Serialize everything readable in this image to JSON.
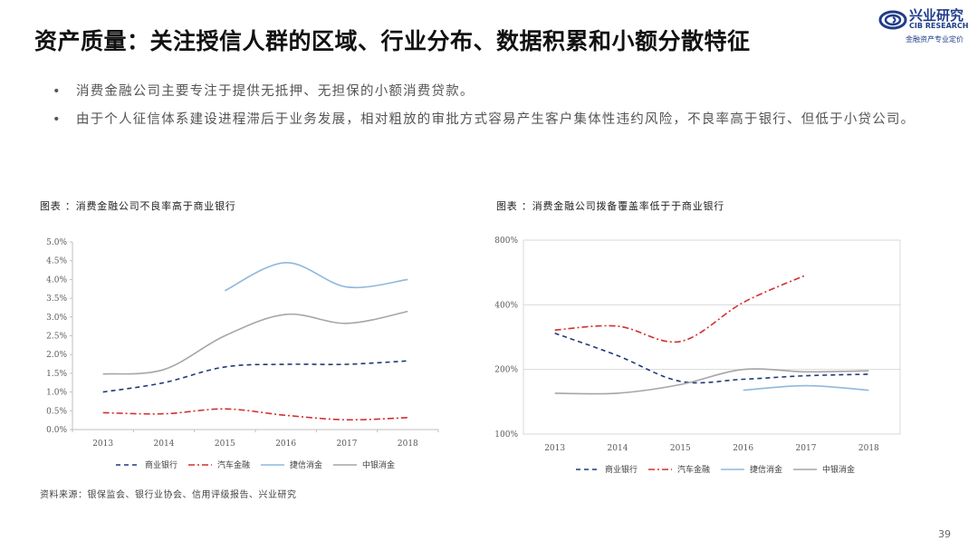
{
  "header": {
    "title": "资产质量：关注授信人群的区域、行业分布、数据积累和小额分散特征",
    "logo_cn": "兴业研究",
    "logo_en": "CIB RESEARCH",
    "logo_tagline": "金融资产专业定价"
  },
  "bullets": [
    {
      "dot": "•",
      "text": "消费金融公司主要专注于提供无抵押、无担保的小额消费贷款。"
    },
    {
      "dot": "•",
      "text": "由于个人征信体系建设进程滞后于业务发展，相对粗放的审批方式容易产生客户集体性违约风险，不良率高于银行、但低于小贷公司。"
    }
  ],
  "figures": {
    "left_title": "图表 ：消费金融公司不良率高于商业银行",
    "right_title": "图表 ：消费金融公司拨备覆盖率低于于商业银行"
  },
  "footer": {
    "source": "资料来源：银保监会、银行业协会、信用评级报告、兴业研究",
    "page_number": "39"
  },
  "colors": {
    "commercial_bank": "#1f3a7a",
    "auto_finance": "#d32f2f",
    "jiebei": "#8fb8de",
    "zhongyin": "#a6a6a6",
    "logo": "#1f3d8a"
  },
  "chart_data": [
    {
      "type": "line",
      "title": "图表 ：消费金融公司不良率高于商业银行",
      "x": [
        "2013",
        "2014",
        "2015",
        "2016",
        "2017",
        "2018"
      ],
      "ylim": [
        0,
        5.0
      ],
      "yticks": [
        "0.0%",
        "0.5%",
        "1.0%",
        "1.5%",
        "2.0%",
        "2.5%",
        "3.0%",
        "3.5%",
        "4.0%",
        "4.5%",
        "5.0%"
      ],
      "legend_position": "bottom",
      "grid": false,
      "series": [
        {
          "name": "商业银行",
          "color": "#1f3a7a",
          "dash": "5,4",
          "values": [
            1.0,
            1.25,
            1.67,
            1.74,
            1.74,
            1.83
          ]
        },
        {
          "name": "汽车金融",
          "color": "#d32f2f",
          "dash": "7,3,2,3",
          "values": [
            0.45,
            0.42,
            0.55,
            0.38,
            0.26,
            0.32
          ]
        },
        {
          "name": "捷信消金",
          "color": "#8fb8de",
          "dash": "",
          "values": [
            null,
            null,
            3.7,
            4.45,
            3.8,
            4.0
          ]
        },
        {
          "name": "中银消金",
          "color": "#a6a6a6",
          "dash": "",
          "values": [
            1.48,
            1.6,
            2.5,
            3.07,
            2.83,
            3.15
          ]
        }
      ]
    },
    {
      "type": "line",
      "title": "图表 ：消费金融公司拨备覆盖率低于于商业银行",
      "x": [
        "2013",
        "2014",
        "2015",
        "2016",
        "2017",
        "2018"
      ],
      "ylim": [
        100,
        800
      ],
      "yscale": "log",
      "yticks": [
        "100%",
        "200%",
        "400%",
        "800%"
      ],
      "legend_position": "bottom",
      "grid": true,
      "series": [
        {
          "name": "商业银行",
          "color": "#1f3a7a",
          "dash": "5,4",
          "values": [
            295,
            232,
            176,
            180,
            187,
            190
          ]
        },
        {
          "name": "汽车金融",
          "color": "#d32f2f",
          "dash": "7,3,2,3",
          "values": [
            305,
            318,
            270,
            410,
            550,
            null
          ]
        },
        {
          "name": "捷信消金",
          "color": "#8fb8de",
          "dash": "",
          "values": [
            null,
            null,
            null,
            160,
            168,
            160
          ]
        },
        {
          "name": "中银消金",
          "color": "#a6a6a6",
          "dash": "",
          "values": [
            155,
            155,
            170,
            200,
            195,
            197
          ]
        }
      ]
    }
  ]
}
